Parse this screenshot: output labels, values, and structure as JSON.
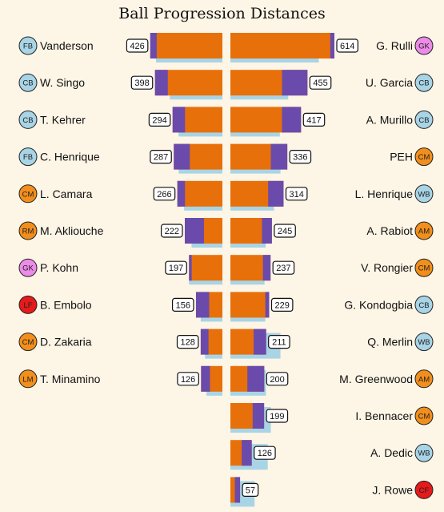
{
  "chart_data": {
    "type": "bar",
    "title": "Ball Progression Distances",
    "colors": {
      "orange": "#e8700a",
      "purple": "#6a4bab",
      "shadow": "#a8d4e6",
      "pos_blue": "#a8d4e6",
      "pos_orange": "#f28f1c",
      "pos_pink": "#ec8be8",
      "pos_red": "#e51a1a",
      "background": "#fdf5e6"
    },
    "left_team": [
      {
        "name": "Vanderson",
        "pos": "FB",
        "pos_color": "blue",
        "value": 426,
        "purple_share": 0.09,
        "shadow": 0.92
      },
      {
        "name": "W. Singo",
        "pos": "CB",
        "pos_color": "blue",
        "value": 398,
        "purple_share": 0.19,
        "shadow": 0.78
      },
      {
        "name": "T. Kehrer",
        "pos": "CB",
        "pos_color": "blue",
        "value": 294,
        "purple_share": 0.25,
        "shadow": 0.88
      },
      {
        "name": "C. Henrique",
        "pos": "FB",
        "pos_color": "blue",
        "value": 287,
        "purple_share": 0.33,
        "shadow": 0.9
      },
      {
        "name": "L. Camara",
        "pos": "CM",
        "pos_color": "orange",
        "value": 266,
        "purple_share": 0.17,
        "shadow": 0.85
      },
      {
        "name": "M. Akliouche",
        "pos": "RM",
        "pos_color": "orange",
        "value": 222,
        "purple_share": 0.51,
        "shadow": 0.82
      },
      {
        "name": "P. Kohn",
        "pos": "GK",
        "pos_color": "pink",
        "value": 197,
        "purple_share": 0.08,
        "shadow": 1.0
      },
      {
        "name": "B. Embolo",
        "pos": "LF",
        "pos_color": "red",
        "value": 156,
        "purple_share": 0.5,
        "shadow": 0.82
      },
      {
        "name": "D. Zakaria",
        "pos": "CM",
        "pos_color": "orange",
        "value": 128,
        "purple_share": 0.36,
        "shadow": 0.8
      },
      {
        "name": "T. Minamino",
        "pos": "LM",
        "pos_color": "orange",
        "value": 126,
        "purple_share": 0.42,
        "shadow": 0.75
      }
    ],
    "right_team": [
      {
        "name": "G. Rulli",
        "pos": "GK",
        "pos_color": "pink",
        "value": 614,
        "purple_share": 0.04,
        "shadow": 0.85
      },
      {
        "name": "U. Garcia",
        "pos": "CB",
        "pos_color": "blue",
        "value": 455,
        "purple_share": 0.33,
        "shadow": 0.75
      },
      {
        "name": "A. Murillo",
        "pos": "CB",
        "pos_color": "blue",
        "value": 417,
        "purple_share": 0.27,
        "shadow": 0.7
      },
      {
        "name": "PEH",
        "pos": "CM",
        "pos_color": "orange",
        "value": 336,
        "purple_share": 0.29,
        "shadow": 0.88
      },
      {
        "name": "L. Henrique",
        "pos": "WB",
        "pos_color": "blue",
        "value": 314,
        "purple_share": 0.29,
        "shadow": 0.82
      },
      {
        "name": "A. Rabiot",
        "pos": "AM",
        "pos_color": "orange",
        "value": 245,
        "purple_share": 0.24,
        "shadow": 0.85
      },
      {
        "name": "V. Rongier",
        "pos": "CM",
        "pos_color": "orange",
        "value": 237,
        "purple_share": 0.19,
        "shadow": 0.85
      },
      {
        "name": "G. Kondogbia",
        "pos": "CB",
        "pos_color": "blue",
        "value": 229,
        "purple_share": 0.1,
        "shadow": 0.9
      },
      {
        "name": "Q. Merlin",
        "pos": "WB",
        "pos_color": "blue",
        "value": 211,
        "purple_share": 0.35,
        "shadow": 1.4
      },
      {
        "name": "M. Greenwood",
        "pos": "AM",
        "pos_color": "orange",
        "value": 200,
        "purple_share": 0.5,
        "shadow": 1.05
      },
      {
        "name": "I. Bennacer",
        "pos": "CM",
        "pos_color": "orange",
        "value": 199,
        "purple_share": 0.34,
        "shadow": 1.2
      },
      {
        "name": "A. Dedic",
        "pos": "WB",
        "pos_color": "blue",
        "value": 126,
        "purple_share": 0.47,
        "shadow": 1.75
      },
      {
        "name": "J. Rowe",
        "pos": "CF",
        "pos_color": "red",
        "value": 57,
        "purple_share": 0.54,
        "shadow": 2.5
      }
    ]
  }
}
